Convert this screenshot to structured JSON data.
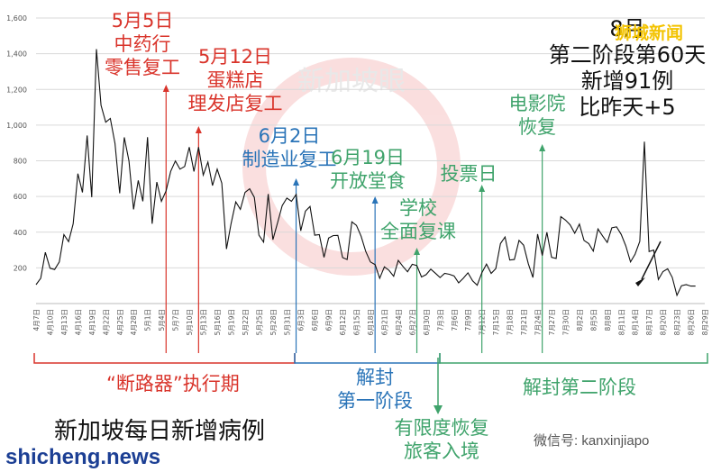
{
  "chart_data": {
    "type": "line",
    "ylim": [
      0,
      1600
    ],
    "yticks": [
      200,
      400,
      600,
      800,
      1000,
      1200,
      1400,
      1600
    ],
    "ytick_labels": [
      "200",
      "400",
      "600",
      "800",
      "1,000",
      "1,200",
      "1,400",
      "1,600"
    ],
    "xtick_labels": [
      "4月7日",
      "4月10日",
      "4月13日",
      "4月16日",
      "4月19日",
      "4月22日",
      "4月25日",
      "4月28日",
      "5月1日",
      "5月4日",
      "5月7日",
      "5月10日",
      "5月13日",
      "5月16日",
      "5月19日",
      "5月22日",
      "5月25日",
      "5月28日",
      "5月31日",
      "6月3日",
      "6月6日",
      "6月9日",
      "6月12日",
      "6月15日",
      "6月18日",
      "6月21日",
      "6月24日",
      "6月27日",
      "6月30日",
      "7月3日",
      "7月6日",
      "7月9日",
      "7月12日",
      "7月15日",
      "7月18日",
      "7月21日",
      "7月24日",
      "7月27日",
      "7月30日",
      "8月2日",
      "8月5日",
      "8月8日",
      "8月11日",
      "8月14日",
      "8月17日",
      "8月20日",
      "8月23日",
      "8月26日",
      "8月29日"
    ],
    "series": [
      {
        "values": [
          106,
          142,
          287,
          198,
          191,
          233,
          386,
          347,
          447,
          728,
          623,
          942,
          596,
          1426,
          1111,
          1016,
          1037,
          897,
          618,
          931,
          799,
          528,
          690,
          573,
          932,
          447,
          681,
          573,
          632,
          741,
          799,
          753,
          768,
          876,
          740,
          876,
          720,
          793,
          661,
          753,
          675,
          306,
          448,
          570,
          528,
          623,
          643,
          595,
          383,
          344,
          614,
          358,
          451,
          548,
          591,
          573,
          611,
          408,
          518,
          544,
          383,
          386,
          259,
          367,
          381,
          382,
          258,
          247,
          458,
          438,
          377,
          292,
          233,
          218,
          142,
          206,
          186,
          153,
          242,
          208,
          178,
          220,
          213,
          149,
          162,
          193,
          170,
          146,
          169,
          164,
          155,
          116,
          142,
          172,
          127,
          103,
          173,
          221,
          169,
          196,
          336,
          373,
          244,
          247,
          354,
          327,
          223,
          146,
          389,
          269,
          399,
          259,
          253,
          487,
          468,
          441,
          394,
          445,
          354,
          336,
          294,
          418,
          379,
          342,
          425,
          430,
          387,
          323,
          233,
          277,
          349,
          907,
          291,
          300,
          135,
          179,
          195,
          147,
          46,
          100,
          106,
          98,
          98
        ]
      }
    ],
    "vlines": [
      {
        "label": "5月5日 中药行 零售复工",
        "index": 28,
        "color": "#d9342b"
      },
      {
        "label": "5月12日 蛋糕店 理发店复工",
        "index": 35,
        "color": "#d9342b"
      },
      {
        "label": "6月2日 制造业复工",
        "index": 56,
        "color": "#2a74b8"
      },
      {
        "label": "6月19日 开放堂食",
        "index": 73,
        "color": "#2a74b8"
      },
      {
        "label": "学校 全面复课",
        "index": 82,
        "color": "#3fa36b"
      },
      {
        "label": "投票日",
        "index": 96,
        "color": "#3fa36b"
      },
      {
        "label": "电影院 恢复",
        "index": 109,
        "color": "#3fa36b"
      }
    ]
  },
  "annotations": {
    "a1": [
      "5月5日",
      "中药行",
      "零售复工"
    ],
    "a2": [
      "5月12日",
      "蛋糕店",
      "理发店复工"
    ],
    "a3": [
      "6月2日",
      "制造业复工"
    ],
    "a4": [
      "6月19日",
      "开放堂食"
    ],
    "a5": [
      "学校",
      "全面复课"
    ],
    "a6": [
      "投票日"
    ],
    "a7": [
      "电影院",
      "恢复"
    ],
    "summary": [
      "8月",
      "第二阶段第60天",
      "新增91例",
      "比昨天+5"
    ]
  },
  "phases": {
    "p1": "“断路器”执行期",
    "p2": [
      "解封",
      "第一阶段"
    ],
    "p3": "解封第二阶段",
    "p4": [
      "有限度恢复",
      "旅客入境"
    ]
  },
  "caption": "新加坡每日新增病例",
  "brand": "狮城新闻",
  "watermark": "新加坡眼",
  "footer": {
    "left": "shicheng.news",
    "right": "微信号: kanxinjiapo"
  }
}
